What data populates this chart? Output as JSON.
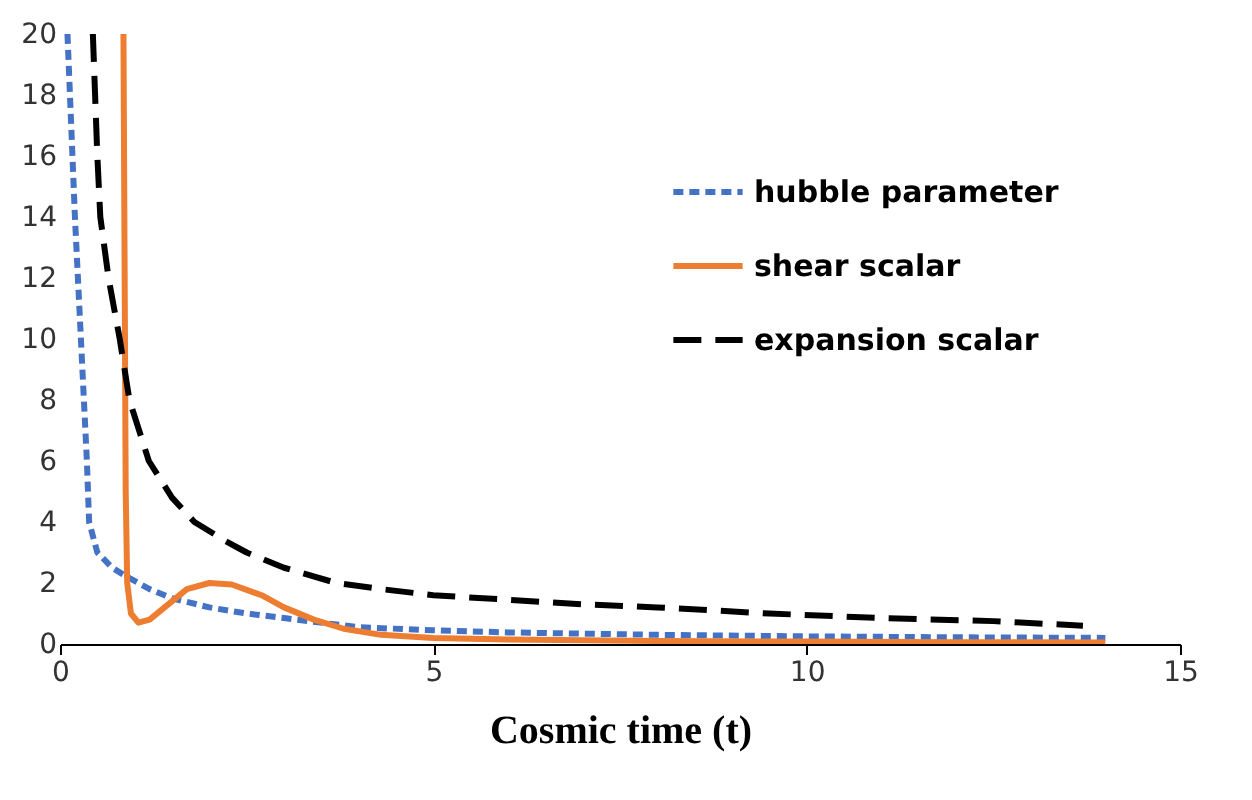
{
  "chart_data": {
    "type": "line",
    "xlabel": "Cosmic time (t)",
    "xlim": [
      0,
      15
    ],
    "xticks": [
      0,
      5,
      10,
      15
    ],
    "ylim": [
      0,
      20
    ],
    "yticks": [
      0,
      2,
      4,
      6,
      8,
      10,
      12,
      14,
      16,
      18,
      20
    ],
    "grid": false,
    "legend": "top right",
    "series": [
      {
        "name": "hubble parameter",
        "color": "#4472c4",
        "line_style": "dotted",
        "x": [
          0.1,
          0.15,
          0.2,
          0.25,
          0.28,
          0.32,
          0.36,
          0.39,
          0.5,
          0.7,
          0.9,
          1.2,
          1.5,
          2,
          2.5,
          3,
          4,
          5,
          6,
          8,
          10,
          12,
          14
        ],
        "values": [
          20,
          17,
          14,
          11.5,
          10,
          8,
          6,
          4,
          3,
          2.5,
          2.2,
          1.8,
          1.5,
          1.2,
          1,
          0.85,
          0.55,
          0.45,
          0.38,
          0.3,
          0.25,
          0.22,
          0.2
        ]
      },
      {
        "name": "shear scalar",
        "color": "#ed7d31",
        "line_style": "solid",
        "x": [
          0.85,
          0.86,
          0.87,
          0.88,
          0.9,
          0.95,
          1.05,
          1.2,
          1.4,
          1.7,
          2,
          2.3,
          2.7,
          3,
          3.4,
          3.8,
          4.3,
          5,
          6,
          8,
          10,
          12,
          14
        ],
        "values": [
          20,
          15,
          10,
          5,
          2,
          1,
          0.7,
          0.8,
          1.2,
          1.8,
          2,
          1.95,
          1.6,
          1.2,
          0.8,
          0.5,
          0.3,
          0.2,
          0.15,
          0.1,
          0.08,
          0.06,
          0.05
        ]
      },
      {
        "name": "expansion scalar",
        "color": "#000000",
        "line_style": "dashed",
        "x": [
          0.44,
          0.5,
          0.54,
          0.65,
          0.8,
          0.93,
          1.19,
          1.5,
          1.8,
          2.2,
          2.5,
          3,
          3.7,
          4.3,
          5,
          6,
          7,
          8,
          9.5,
          11,
          12.5,
          13.7
        ],
        "values": [
          20,
          16,
          14,
          12,
          10,
          8,
          6,
          4.8,
          4,
          3.4,
          3,
          2.5,
          2,
          1.8,
          1.6,
          1.45,
          1.3,
          1.2,
          1,
          0.85,
          0.75,
          0.6
        ]
      }
    ]
  }
}
